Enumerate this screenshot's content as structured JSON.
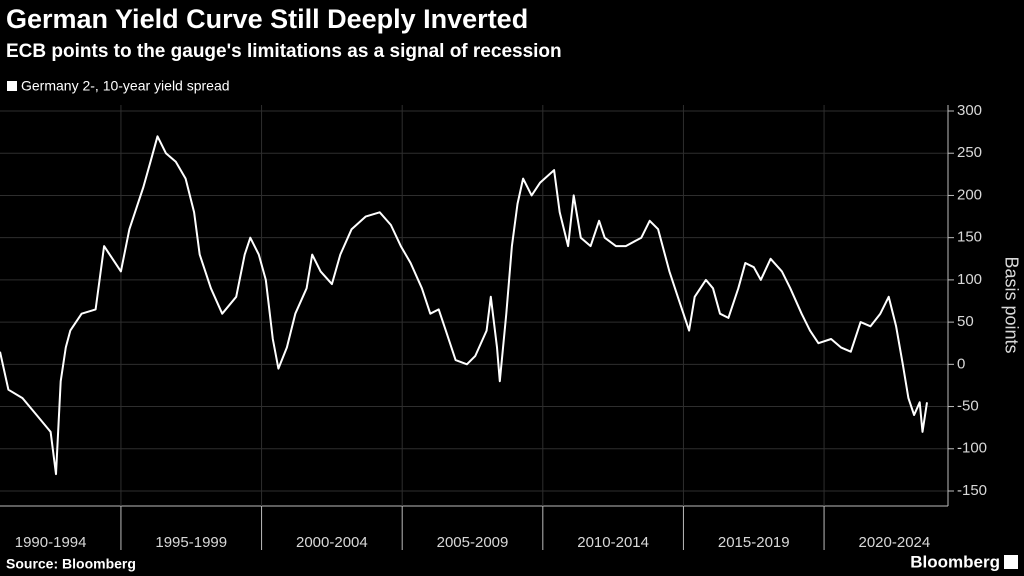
{
  "chart_data": {
    "type": "line",
    "title": "German Yield Curve Still Deeply Inverted",
    "subtitle": "ECB points to the gauge's limitations as a signal of recession",
    "y_label": "Basis points",
    "source": "Source: Bloomberg",
    "brand": "Bloomberg",
    "xlim": [
      1990.7,
      2024.3
    ],
    "xticks": [
      {
        "value": 1990,
        "label": "1990-1994"
      },
      {
        "value": 1995,
        "label": "1995-1999"
      },
      {
        "value": 2000,
        "label": "2000-2004"
      },
      {
        "value": 2005,
        "label": "2005-2009"
      },
      {
        "value": 2010,
        "label": "2010-2014"
      },
      {
        "value": 2015,
        "label": "2015-2019"
      },
      {
        "value": 2020,
        "label": "2020-2024"
      }
    ],
    "ylim": [
      -150,
      300
    ],
    "yticks": [
      300,
      250,
      200,
      150,
      100,
      50,
      0,
      -50,
      -100,
      -150
    ],
    "grid": true,
    "x": [
      1990.7,
      1991.0,
      1991.5,
      1992.0,
      1992.5,
      1992.69,
      1992.86,
      1993.04,
      1993.2,
      1993.6,
      1994.1,
      1994.4,
      1994.6,
      1995.0,
      1995.3,
      1995.5,
      1995.8,
      1996.05,
      1996.3,
      1996.6,
      1996.95,
      1997.3,
      1997.6,
      1997.8,
      1998.2,
      1998.6,
      1999.1,
      1999.4,
      1999.6,
      1999.9,
      2000.15,
      2000.4,
      2000.6,
      2000.9,
      2001.2,
      2001.6,
      2001.8,
      2002.1,
      2002.5,
      2002.8,
      2003.2,
      2003.7,
      2004.2,
      2004.6,
      2004.95,
      2005.3,
      2005.7,
      2006.0,
      2006.3,
      2006.55,
      2006.9,
      2007.3,
      2007.6,
      2008.0,
      2008.15,
      2008.37,
      2008.47,
      2008.7,
      2008.9,
      2009.1,
      2009.3,
      2009.6,
      2009.9,
      2010.4,
      2010.6,
      2010.9,
      2011.1,
      2011.35,
      2011.7,
      2012.0,
      2012.2,
      2012.6,
      2012.95,
      2013.5,
      2013.8,
      2014.1,
      2014.5,
      2014.8,
      2015.2,
      2015.4,
      2015.8,
      2016.05,
      2016.3,
      2016.6,
      2016.95,
      2017.2,
      2017.5,
      2017.75,
      2018.1,
      2018.5,
      2018.8,
      2019.2,
      2019.5,
      2019.8,
      2020.25,
      2020.6,
      2020.95,
      2021.3,
      2021.65,
      2022.0,
      2022.3,
      2022.56,
      2022.8,
      2023.0,
      2023.2,
      2023.4,
      2023.5,
      2023.66
    ],
    "series": [
      {
        "name": "Germany 2-, 10-year yield spread",
        "color": "#ffffff",
        "values": [
          15,
          -30,
          -40,
          -60,
          -80,
          -130,
          -20,
          20,
          40,
          60,
          65,
          140,
          130,
          110,
          160,
          180,
          210,
          240,
          270,
          250,
          240,
          220,
          180,
          130,
          90,
          60,
          80,
          130,
          150,
          130,
          100,
          30,
          -5,
          20,
          60,
          90,
          130,
          110,
          95,
          130,
          160,
          175,
          180,
          165,
          140,
          120,
          90,
          60,
          65,
          40,
          5,
          0,
          10,
          40,
          80,
          20,
          -20,
          60,
          140,
          190,
          220,
          200,
          215,
          230,
          180,
          140,
          200,
          150,
          140,
          170,
          150,
          140,
          140,
          150,
          170,
          160,
          110,
          80,
          40,
          80,
          100,
          90,
          60,
          55,
          90,
          120,
          115,
          100,
          125,
          110,
          90,
          60,
          40,
          25,
          30,
          20,
          15,
          50,
          45,
          60,
          80,
          45,
          0,
          -40,
          -60,
          -45,
          -80,
          -45
        ]
      }
    ]
  }
}
